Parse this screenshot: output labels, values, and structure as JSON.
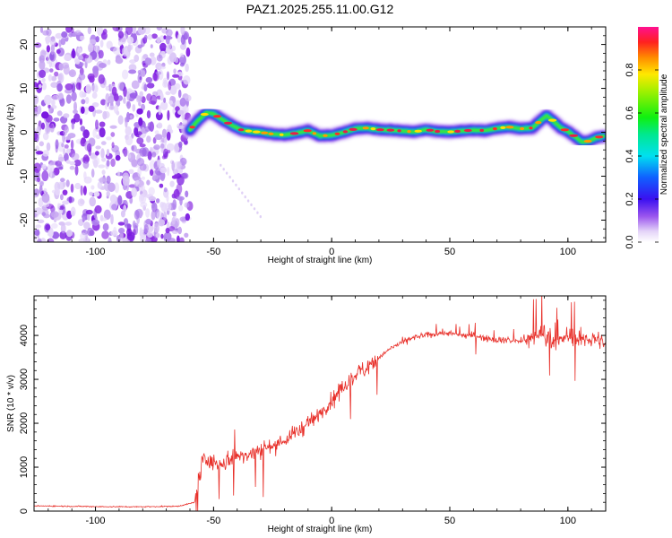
{
  "figure_title": "PAZ1.2025.255.11.00.G12",
  "colors": {
    "snr_line": "#e8302a",
    "noise_purple": "#8a2be2",
    "track_band": "#22cc33",
    "track_core": "#e81e28"
  },
  "chart_data": [
    {
      "type": "heatmap",
      "name": "spectrogram",
      "xlabel": "Height of straight line (km)",
      "ylabel": "Frequency (Hz)",
      "xlim": [
        -126,
        116
      ],
      "ylim": [
        -25,
        24
      ],
      "xticks": [
        -100,
        -50,
        0,
        50,
        100
      ],
      "yticks": [
        -20,
        -10,
        0,
        10,
        20
      ],
      "noise_region_x": [
        -126,
        -62
      ],
      "track": {
        "x": [
          -60,
          -57,
          -53,
          -50,
          -46,
          -42,
          -38,
          -34,
          -30,
          -25,
          -20,
          -15,
          -10,
          -5,
          0,
          5,
          10,
          15,
          20,
          25,
          30,
          35,
          40,
          45,
          50,
          55,
          60,
          65,
          70,
          75,
          80,
          85,
          88,
          91,
          94,
          97,
          100,
          103,
          106,
          109,
          112,
          115
        ],
        "y": [
          0.5,
          2.5,
          4.5,
          4.2,
          2.8,
          1.5,
          0.5,
          0.2,
          0.0,
          -0.4,
          -0.6,
          -0.2,
          0.4,
          -0.8,
          -0.7,
          0.0,
          0.8,
          1.0,
          0.6,
          0.5,
          0.3,
          0.1,
          0.6,
          0.2,
          0.1,
          0.3,
          0.5,
          0.4,
          0.9,
          1.2,
          0.8,
          1.0,
          2.5,
          3.8,
          2.5,
          1.0,
          0.2,
          -1.0,
          -2.2,
          -2.0,
          -1.2,
          -0.9
        ]
      },
      "colorbar": {
        "label": "Normalized spectral amplitude",
        "ticks": [
          0.0,
          0.2,
          0.4,
          0.6,
          0.8
        ],
        "tick_labels": [
          "0.0",
          "0.2",
          "0.4",
          "0.6",
          "0.8"
        ],
        "range": [
          0,
          1
        ]
      }
    },
    {
      "type": "line",
      "name": "snr",
      "xlabel": "Height of straight line (km)",
      "ylabel": "SNR (10 * v/v)",
      "xlim": [
        -126,
        116
      ],
      "ylim": [
        0,
        4900
      ],
      "xticks": [
        -100,
        -50,
        0,
        50,
        100
      ],
      "yticks": [
        0,
        1000,
        2000,
        3000,
        4000
      ],
      "series": [
        {
          "name": "SNR",
          "x": [
            -126,
            -110,
            -95,
            -80,
            -65,
            -58,
            -55,
            -52,
            -48,
            -44,
            -40,
            -35,
            -30,
            -25,
            -20,
            -15,
            -10,
            -5,
            0,
            5,
            10,
            15,
            20,
            25,
            30,
            35,
            40,
            45,
            50,
            55,
            60,
            65,
            70,
            75,
            80,
            85,
            90,
            95,
            100,
            105,
            110,
            116
          ],
          "values": [
            120,
            110,
            100,
            100,
            110,
            200,
            1100,
            1200,
            1000,
            1150,
            1250,
            1300,
            1400,
            1500,
            1600,
            1800,
            2000,
            2200,
            2500,
            2800,
            3100,
            3300,
            3500,
            3700,
            3850,
            3950,
            4000,
            4050,
            4050,
            4000,
            4000,
            3950,
            3900,
            3900,
            3850,
            3950,
            4100,
            3800,
            4000,
            3900,
            3950,
            3800
          ]
        }
      ]
    }
  ]
}
